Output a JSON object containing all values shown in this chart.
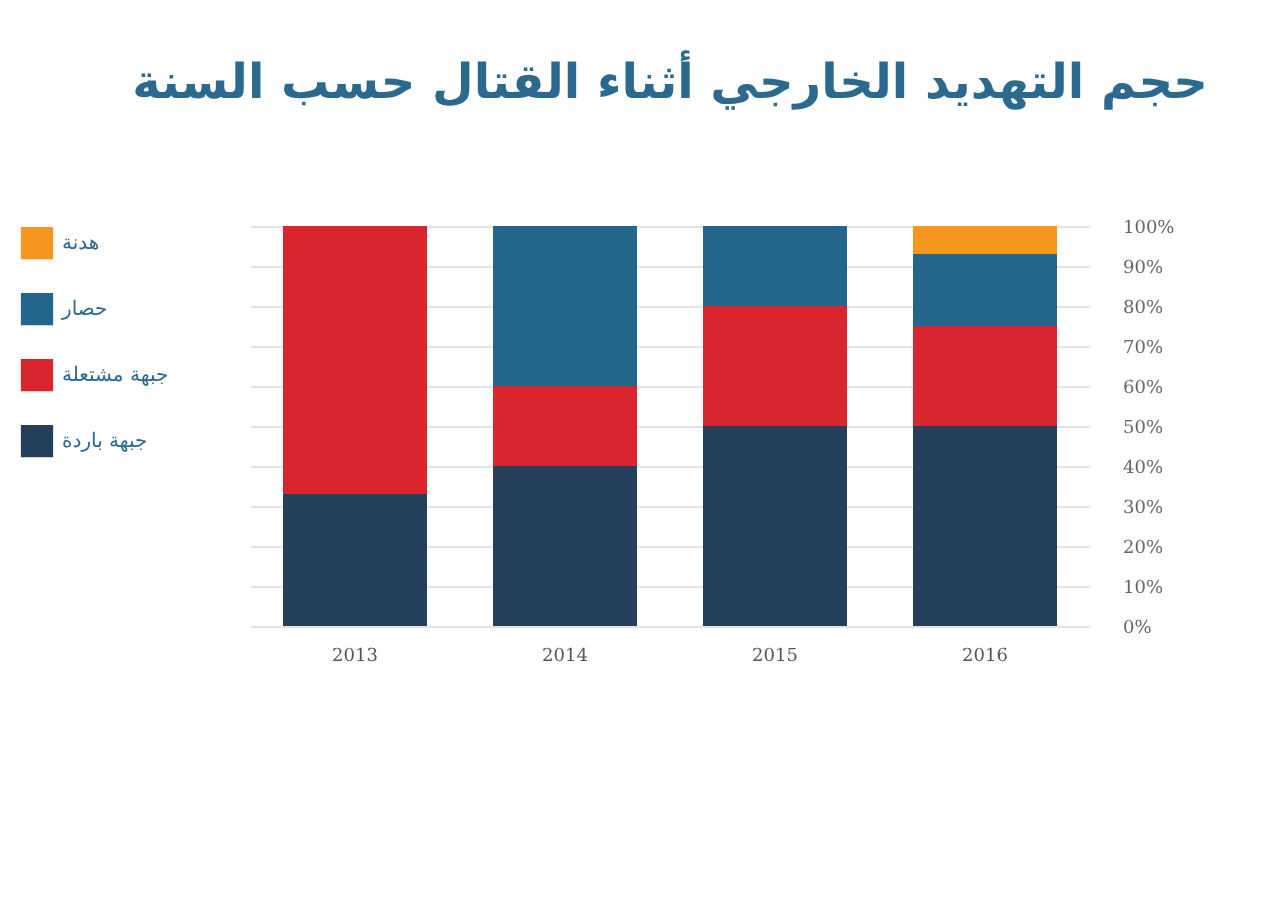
{
  "chart_data": {
    "type": "bar",
    "stacked": true,
    "title": "حجم التهديد الخارجي أثناء القتال حسب السنة",
    "categories": [
      "2013",
      "2014",
      "2015",
      "2016"
    ],
    "series": [
      {
        "name": "جبهة باردة",
        "color": "#243f5a",
        "values": [
          33,
          40,
          50,
          50
        ]
      },
      {
        "name": "جبهة مشتعلة",
        "color": "#d9262e",
        "values": [
          67,
          20,
          30,
          25
        ]
      },
      {
        "name": "حصار",
        "color": "#23688c",
        "values": [
          null,
          40,
          20,
          18
        ]
      },
      {
        "name": "هدنة",
        "color": "#f5961e",
        "values": [
          null,
          null,
          null,
          7
        ]
      }
    ],
    "ylim": [
      0,
      100
    ],
    "yticks": [
      {
        "value": 0,
        "label": "0%"
      },
      {
        "value": 10,
        "label": "10%"
      },
      {
        "value": 20,
        "label": "20%"
      },
      {
        "value": 30,
        "label": "30%"
      },
      {
        "value": 40,
        "label": "40%"
      },
      {
        "value": 50,
        "label": "50%"
      },
      {
        "value": 60,
        "label": "60%"
      },
      {
        "value": 70,
        "label": "70%"
      },
      {
        "value": 80,
        "label": "80%"
      },
      {
        "value": 90,
        "label": "90%"
      },
      {
        "value": 100,
        "label": "100%"
      }
    ],
    "grid": "y",
    "legend": "left"
  }
}
